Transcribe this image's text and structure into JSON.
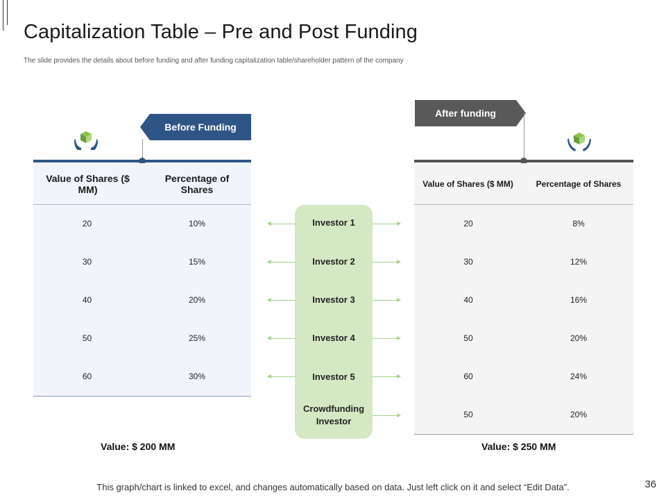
{
  "slide": {
    "title": "Capitalization Table – Pre and Post Funding",
    "subtitle": "The slide provides the details about before funding and after funding capitalization table/shareholder pattern of the company",
    "footer": "This graph/chart is linked to excel, and changes automatically based on data. Just left click on it and select “Edit Data”.",
    "page_number": "36"
  },
  "colors": {
    "before": "#2f5586",
    "after": "#595959",
    "investor_panel": "#d5e8c4",
    "arrow": "#a6d48a"
  },
  "before": {
    "tag": "Before Funding",
    "icon": "cube-in-hands-icon",
    "headers": [
      "Value of Shares ($ MM)",
      "Percentage of Shares"
    ],
    "rows": [
      [
        "20",
        "10%"
      ],
      [
        "30",
        "15%"
      ],
      [
        "40",
        "20%"
      ],
      [
        "50",
        "25%"
      ],
      [
        "60",
        "30%"
      ]
    ],
    "total": "Value: $ 200 MM"
  },
  "after": {
    "tag": "After funding",
    "icon": "cube-in-hands-icon",
    "headers": [
      "Value of Shares ($ MM)",
      "Percentage of Shares"
    ],
    "rows": [
      [
        "20",
        "8%"
      ],
      [
        "30",
        "12%"
      ],
      [
        "40",
        "16%"
      ],
      [
        "50",
        "20%"
      ],
      [
        "60",
        "24%"
      ],
      [
        "50",
        "20%"
      ]
    ],
    "total": "Value: $ 250 MM"
  },
  "investors": [
    "Investor 1",
    "Investor 2",
    "Investor 3",
    "Investor 4",
    "Investor 5",
    "Crowdfunding Investor"
  ]
}
